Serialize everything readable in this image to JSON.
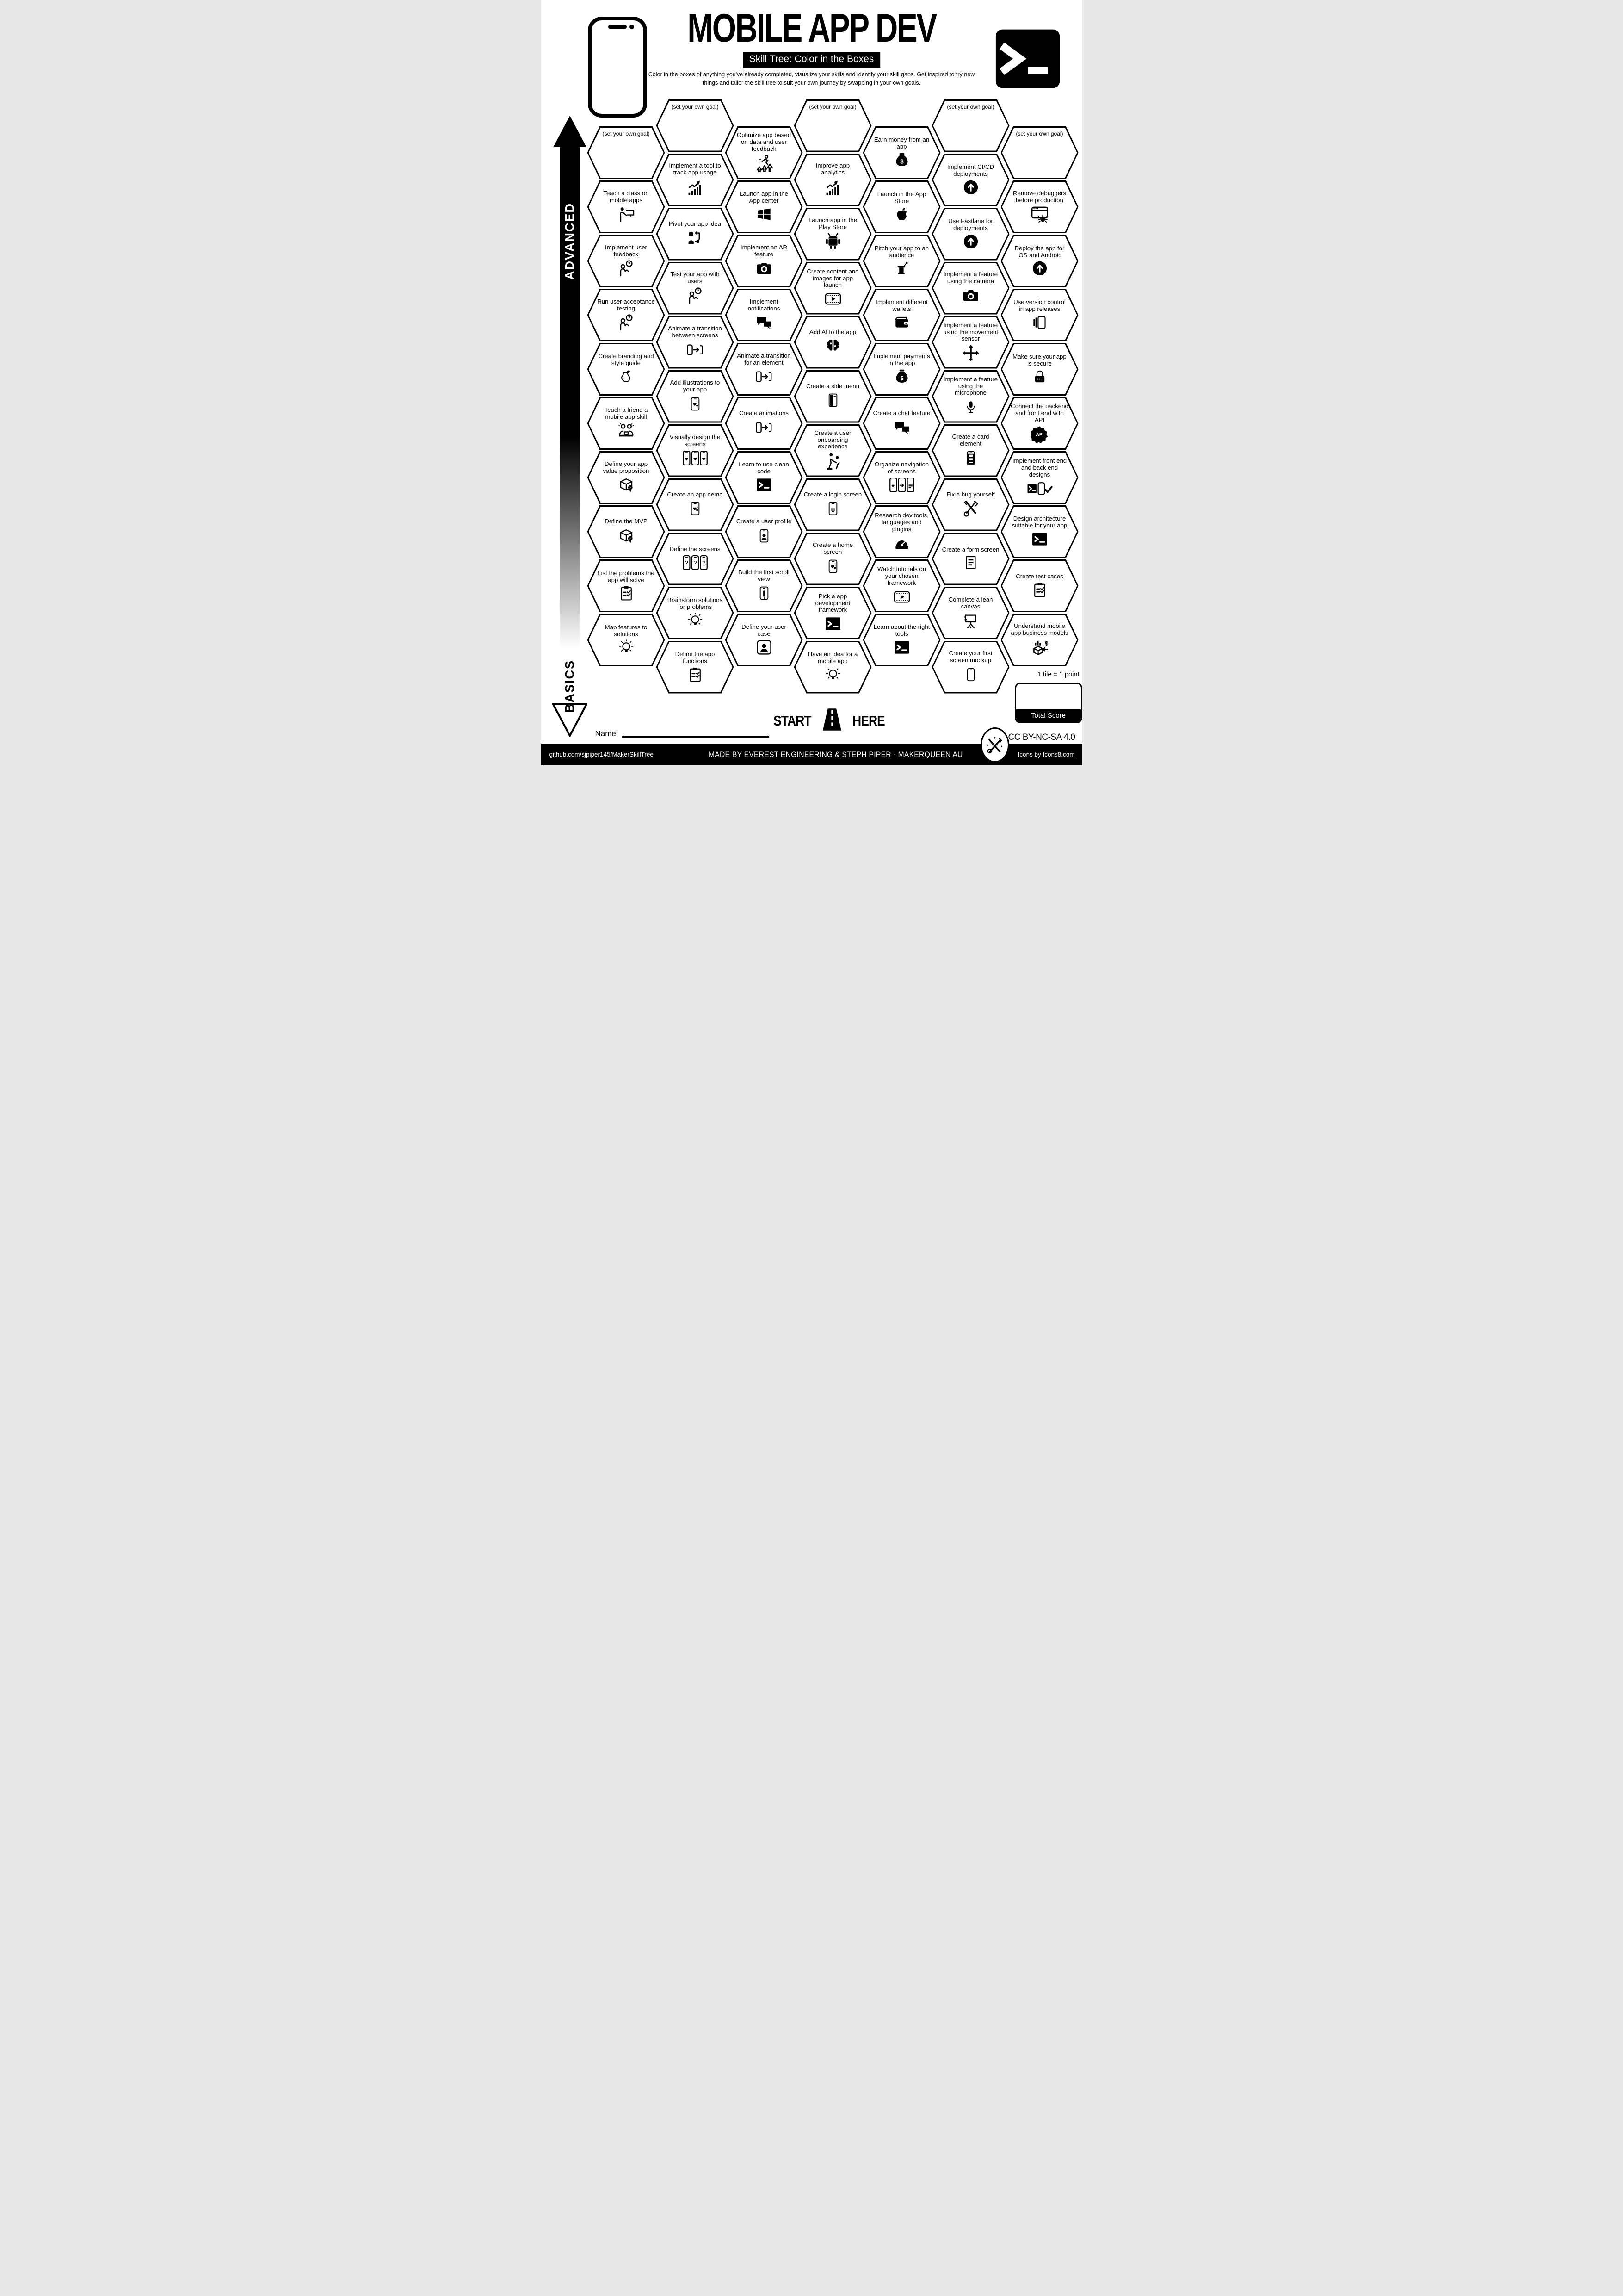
{
  "header": {
    "title": "MOBILE APP DEV",
    "subtitle": "Skill Tree: Color in the Boxes",
    "description": "Color in the boxes of anything you've already completed, visualize your skills and identify your skill gaps.  Get inspired to try new things and tailor the skill tree to suit your own journey by swapping in your own goals."
  },
  "axis": {
    "top": "ADVANCED",
    "bottom": "BASICS"
  },
  "start": {
    "left": "START",
    "right": "HERE"
  },
  "name_label": "Name:",
  "score": {
    "note": "1 tile = 1 point",
    "label": "Total Score"
  },
  "license": "CC BY-NC-SA 4.0",
  "footer": {
    "left": "github.com/sjpiper145/MakerSkillTree",
    "center": "MADE BY EVEREST ENGINEERING & STEPH PIPER  -  MAKERQUEEN AU",
    "right": "Icons by Icons8.com"
  },
  "hexes": [
    {
      "col": 0,
      "row": 0,
      "label": "(set your own goal)",
      "icon": null,
      "goal": true
    },
    {
      "col": 0,
      "row": 1,
      "label": "Teach a class on mobile apps",
      "icon": "person-presentation"
    },
    {
      "col": 0,
      "row": 2,
      "label": "Implement user feedback",
      "icon": "person-question"
    },
    {
      "col": 0,
      "row": 3,
      "label": "Run user acceptance testing",
      "icon": "person-question"
    },
    {
      "col": 0,
      "row": 4,
      "label": "Create branding and style guide",
      "icon": "pear"
    },
    {
      "col": 0,
      "row": 5,
      "label": "Teach a friend a mobile app skill",
      "icon": "two-people-laptop"
    },
    {
      "col": 0,
      "row": 6,
      "label": "Define your app value proposition",
      "icon": "box-badge"
    },
    {
      "col": 0,
      "row": 7,
      "label": "Define the MVP",
      "icon": "box-badge"
    },
    {
      "col": 0,
      "row": 8,
      "label": "List the problems the app will solve",
      "icon": "clipboard-check"
    },
    {
      "col": 0,
      "row": 9,
      "label": "Map features to solutions",
      "icon": "bulb"
    },
    {
      "col": 1,
      "row": 0,
      "label": "(set your own goal)",
      "icon": null,
      "goal": true
    },
    {
      "col": 1,
      "row": 1,
      "label": "Implement a tool to track app usage",
      "icon": "chart-up"
    },
    {
      "col": 1,
      "row": 2,
      "label": "Pivot your app idea",
      "icon": "boxes-swap"
    },
    {
      "col": 1,
      "row": 3,
      "label": "Test your app with users",
      "icon": "person-question"
    },
    {
      "col": 1,
      "row": 4,
      "label": "Animate a transition between screens",
      "icon": "phone-transition"
    },
    {
      "col": 1,
      "row": 5,
      "label": "Add illustrations to your app",
      "icon": "phone-hearts"
    },
    {
      "col": 1,
      "row": 6,
      "label": "Visually design the screens",
      "icon": "three-phones-hearts"
    },
    {
      "col": 1,
      "row": 7,
      "label": "Create an app demo",
      "icon": "phone-hearts"
    },
    {
      "col": 1,
      "row": 8,
      "label": "Define the screens",
      "icon": "three-phones-question"
    },
    {
      "col": 1,
      "row": 9,
      "label": "Brainstorm solutions for problems",
      "icon": "bulb"
    },
    {
      "col": 1,
      "row": 10,
      "label": "Define the app functions",
      "icon": "clipboard-check"
    },
    {
      "col": 2,
      "row": 0,
      "label": "Optimize app based on data and user feedback",
      "icon": "runner-arrows"
    },
    {
      "col": 2,
      "row": 1,
      "label": "Launch app in the App center",
      "icon": "windows"
    },
    {
      "col": 2,
      "row": 2,
      "label": "Implement an AR feature",
      "icon": "camera"
    },
    {
      "col": 2,
      "row": 3,
      "label": "Implement notifications",
      "icon": "chat-double"
    },
    {
      "col": 2,
      "row": 4,
      "label": "Animate a transition for an element",
      "icon": "phone-transition"
    },
    {
      "col": 2,
      "row": 5,
      "label": "Create animations",
      "icon": "phone-transition"
    },
    {
      "col": 2,
      "row": 6,
      "label": "Learn to use clean code",
      "icon": "terminal"
    },
    {
      "col": 2,
      "row": 7,
      "label": "Create a user profile",
      "icon": "phone-user"
    },
    {
      "col": 2,
      "row": 8,
      "label": "Build the first scroll view",
      "icon": "phone-scroll"
    },
    {
      "col": 2,
      "row": 9,
      "label": "Define your user case",
      "icon": "user-badge"
    },
    {
      "col": 3,
      "row": 0,
      "label": "(set your own goal)",
      "icon": null,
      "goal": true
    },
    {
      "col": 3,
      "row": 1,
      "label": "Improve app analytics",
      "icon": "chart-up"
    },
    {
      "col": 3,
      "row": 2,
      "label": "Launch app in the Play Store",
      "icon": "android"
    },
    {
      "col": 3,
      "row": 3,
      "label": "Create content and images for app launch",
      "icon": "film-play"
    },
    {
      "col": 3,
      "row": 4,
      "label": "Add AI to the app",
      "icon": "brain"
    },
    {
      "col": 3,
      "row": 5,
      "label": "Create a side menu",
      "icon": "phone-sidemenu"
    },
    {
      "col": 3,
      "row": 6,
      "label": "Create a user onboarding experience",
      "icon": "people-help"
    },
    {
      "col": 3,
      "row": 7,
      "label": "Create a login screen",
      "icon": "phone-lines"
    },
    {
      "col": 3,
      "row": 8,
      "label": "Create a home screen",
      "icon": "phone-hearts"
    },
    {
      "col": 3,
      "row": 9,
      "label": "Pick a app development framework",
      "icon": "terminal"
    },
    {
      "col": 3,
      "row": 10,
      "label": "Have an idea for a mobile app",
      "icon": "bulb"
    },
    {
      "col": 4,
      "row": 0,
      "label": "Earn money from an app",
      "icon": "money-bag"
    },
    {
      "col": 4,
      "row": 1,
      "label": "Launch in the App Store",
      "icon": "apple"
    },
    {
      "col": 4,
      "row": 2,
      "label": "Pitch your app to an audience",
      "icon": "podium"
    },
    {
      "col": 4,
      "row": 3,
      "label": "Implement different wallets",
      "icon": "wallet"
    },
    {
      "col": 4,
      "row": 4,
      "label": "Implement payments in the app",
      "icon": "money-bag"
    },
    {
      "col": 4,
      "row": 5,
      "label": "Create a chat feature",
      "icon": "chat-double"
    },
    {
      "col": 4,
      "row": 6,
      "label": "Organize navigation of screens",
      "icon": "three-phones-nav"
    },
    {
      "col": 4,
      "row": 7,
      "label": "Research dev tools, languages and plugins",
      "icon": "gauge"
    },
    {
      "col": 4,
      "row": 8,
      "label": "Watch tutorials on your chosen framework",
      "icon": "film-play"
    },
    {
      "col": 4,
      "row": 9,
      "label": "Learn about the right tools",
      "icon": "terminal"
    },
    {
      "col": 5,
      "row": 0,
      "label": "(set your own goal)",
      "icon": null,
      "goal": true
    },
    {
      "col": 5,
      "row": 1,
      "label": "Implement CI/CD deployments",
      "icon": "circle-up"
    },
    {
      "col": 5,
      "row": 2,
      "label": "Use Fastlane for deployments",
      "icon": "circle-up"
    },
    {
      "col": 5,
      "row": 3,
      "label": "Implement a feature using the camera",
      "icon": "camera"
    },
    {
      "col": 5,
      "row": 4,
      "label": "Implement a feature using the movement sensor",
      "icon": "move-arrows"
    },
    {
      "col": 5,
      "row": 5,
      "label": "Implement a feature using the microphone",
      "icon": "mic"
    },
    {
      "col": 5,
      "row": 6,
      "label": "Create a card element",
      "icon": "phone-cards"
    },
    {
      "col": 5,
      "row": 7,
      "label": "Fix a bug yourself",
      "icon": "tools-cross"
    },
    {
      "col": 5,
      "row": 8,
      "label": "Create a form screen",
      "icon": "doc-lines"
    },
    {
      "col": 5,
      "row": 9,
      "label": "Complete a lean canvas",
      "icon": "easel"
    },
    {
      "col": 5,
      "row": 10,
      "label": "Create your first screen mockup",
      "icon": "phone-outline"
    },
    {
      "col": 6,
      "row": 0,
      "label": "(set your own goal)",
      "icon": null,
      "goal": true
    },
    {
      "col": 6,
      "row": 1,
      "label": "Remove debuggers before production",
      "icon": "window-bug"
    },
    {
      "col": 6,
      "row": 2,
      "label": "Deploy the app for iOS and Android",
      "icon": "circle-up"
    },
    {
      "col": 6,
      "row": 3,
      "label": "Use version control in app releases",
      "icon": "phone-stack"
    },
    {
      "col": 6,
      "row": 4,
      "label": "Make sure your app is secure",
      "icon": "lock"
    },
    {
      "col": 6,
      "row": 5,
      "label": "Connect the backend and front end with API",
      "icon": "gear-api"
    },
    {
      "col": 6,
      "row": 6,
      "label": "Implement front end and back end designs",
      "icon": "terminal-phone-check"
    },
    {
      "col": 6,
      "row": 7,
      "label": "Design architecture suitable for your app",
      "icon": "terminal"
    },
    {
      "col": 6,
      "row": 8,
      "label": "Create test cases",
      "icon": "clipboard-check"
    },
    {
      "col": 6,
      "row": 9,
      "label": "Understand mobile app business models",
      "icon": "box-dollar"
    }
  ]
}
